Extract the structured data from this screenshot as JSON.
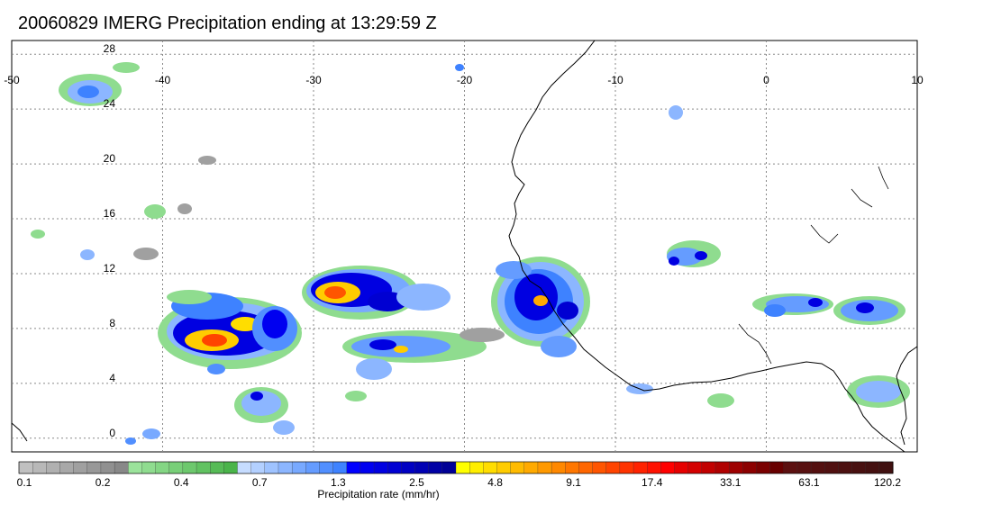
{
  "title": "20060829 IMERG Precipitation ending at 13:29:59 Z",
  "map": {
    "lon_range": [
      -50,
      10
    ],
    "lat_range": [
      -1,
      29
    ],
    "lon_ticks": [
      "-50",
      "-40",
      "-30",
      "-20",
      "-10",
      "0",
      "10"
    ],
    "lat_ticks": [
      "28",
      "24",
      "20",
      "16",
      "12",
      "8",
      "4",
      "0"
    ],
    "grid": "dotted",
    "coastline_color": "#000000"
  },
  "colorbar": {
    "label": "Precipitation rate (mm/hr)",
    "tick_labels": [
      "0.1",
      "0.2",
      "0.4",
      "0.7",
      "1.3",
      "2.5",
      "4.8",
      "9.1",
      "17.4",
      "33.1",
      "63.1",
      "120.2"
    ],
    "colors": [
      "#c0c0c0",
      "#b8b8b8",
      "#b0b0b0",
      "#a8a8a8",
      "#a0a0a0",
      "#989898",
      "#909090",
      "#888888",
      "#9be39b",
      "#8fdc8f",
      "#84d684",
      "#78cf78",
      "#6dc86d",
      "#61c261",
      "#56bb56",
      "#4ab44a",
      "#c6dcff",
      "#b3d0ff",
      "#9fc3ff",
      "#8cb6ff",
      "#78a9ff",
      "#659cff",
      "#518fff",
      "#3e82ff",
      "#0000ff",
      "#0000f0",
      "#0000e1",
      "#0000d2",
      "#0000c3",
      "#0000b4",
      "#0000a5",
      "#000096",
      "#ffff00",
      "#ffee00",
      "#ffdd00",
      "#ffcc00",
      "#ffbb00",
      "#ffaa00",
      "#ff9900",
      "#ff8800",
      "#ff7700",
      "#ff6600",
      "#ff5500",
      "#ff4400",
      "#ff3300",
      "#ff2200",
      "#ff1100",
      "#ff0000",
      "#e60000",
      "#d40000",
      "#c20000",
      "#b00000",
      "#9e0000",
      "#8c0000",
      "#7a0000",
      "#680000",
      "#5c1010",
      "#581010",
      "#541010",
      "#501010",
      "#4c1010",
      "#481010",
      "#441010",
      "#401010"
    ]
  }
}
